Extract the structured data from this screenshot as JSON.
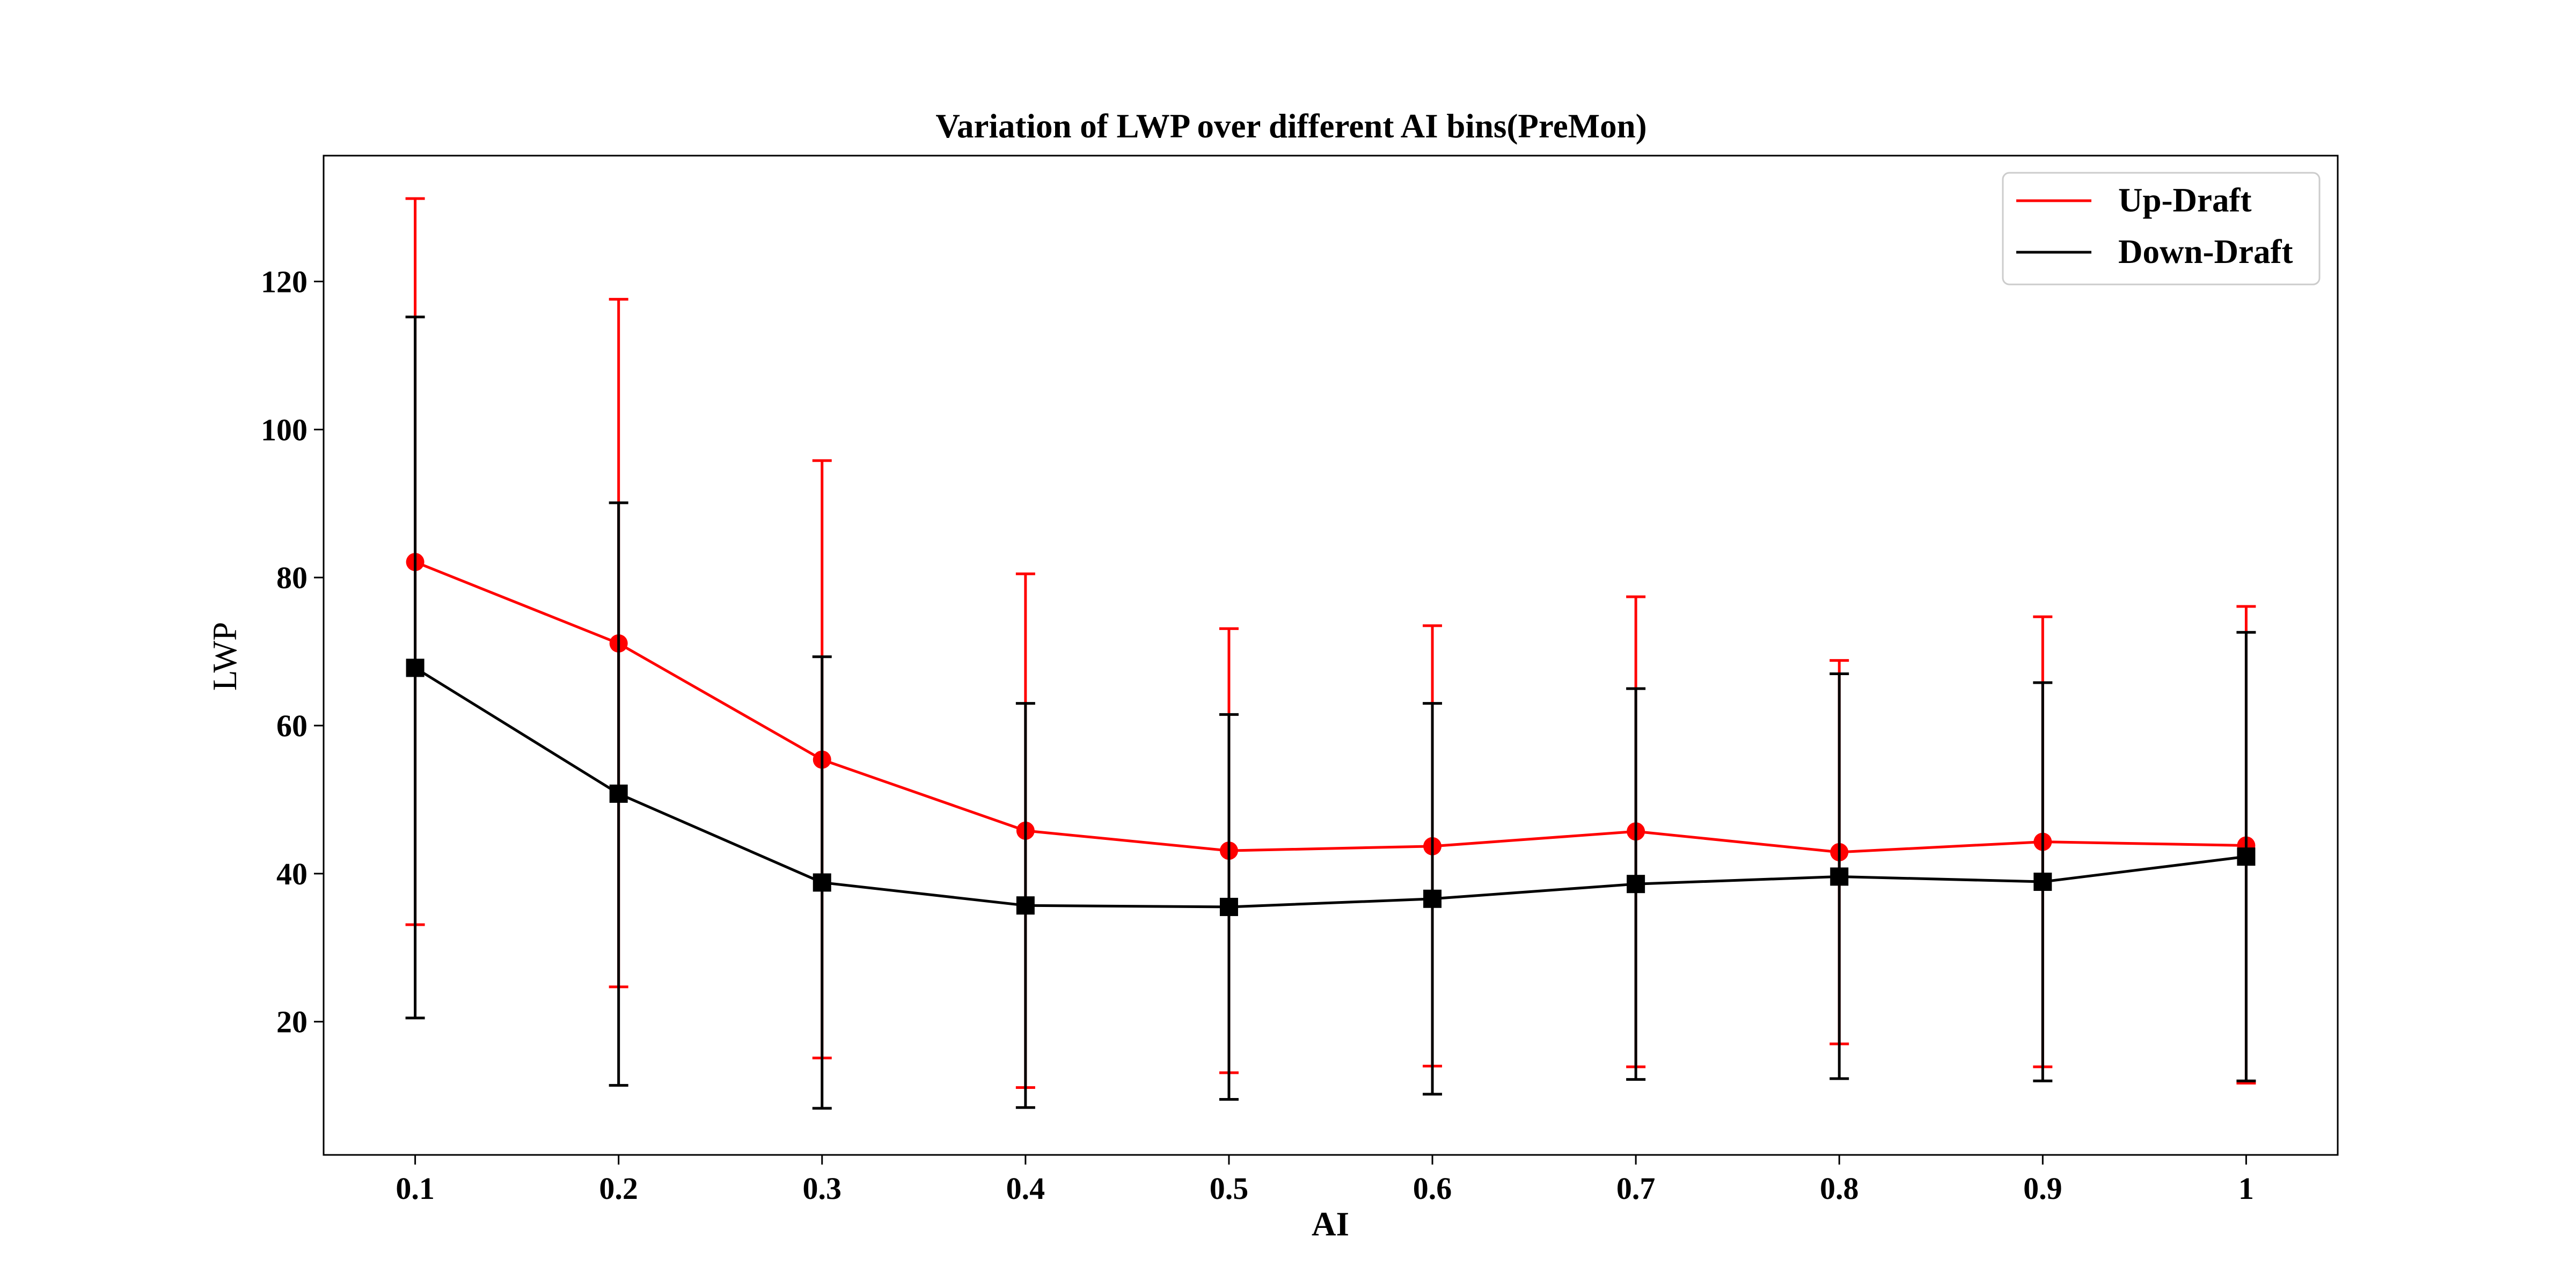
{
  "chart_data": {
    "type": "line",
    "title": "Variation of LWP over different AI bins(PreMon)",
    "xlabel": "AI",
    "ylabel": "LWP",
    "categories": [
      "0.1",
      "0.2",
      "0.3",
      "0.4",
      "0.5",
      "0.6",
      "0.7",
      "0.8",
      "0.9",
      "1"
    ],
    "x": [
      0.1,
      0.2,
      0.3,
      0.4,
      0.5,
      0.6,
      0.7,
      0.8,
      0.9,
      1.0
    ],
    "ylim": [
      2,
      137
    ],
    "xlim": [
      0.055,
      1.045
    ],
    "yticks": [
      20,
      40,
      60,
      80,
      100,
      120
    ],
    "grid": false,
    "legend": {
      "position": "top-right",
      "entries": [
        "Up-Draft",
        "Down-Draft"
      ]
    },
    "series": [
      {
        "name": "Up-Draft",
        "color": "#ff0000",
        "marker": "circle",
        "values": [
          82.1,
          71.1,
          55.4,
          45.8,
          43.1,
          43.7,
          45.7,
          42.9,
          44.3,
          43.8
        ],
        "err_upper": [
          131.2,
          117.6,
          95.8,
          80.5,
          73.1,
          73.5,
          77.4,
          68.8,
          74.7,
          76.1
        ],
        "err_lower": [
          33.1,
          24.7,
          15.1,
          11.1,
          13.1,
          14.0,
          13.9,
          17.0,
          13.9,
          11.7
        ]
      },
      {
        "name": "Down-Draft",
        "color": "#000000",
        "marker": "square",
        "values": [
          67.8,
          50.8,
          38.8,
          35.7,
          35.5,
          36.6,
          38.6,
          39.6,
          38.9,
          42.3
        ],
        "err_upper": [
          115.2,
          90.1,
          69.3,
          63.0,
          61.5,
          63.0,
          65.0,
          67.0,
          65.8,
          72.6
        ],
        "err_lower": [
          20.5,
          11.4,
          8.3,
          8.4,
          9.5,
          10.2,
          12.2,
          12.3,
          12.0,
          12.0
        ]
      }
    ]
  }
}
